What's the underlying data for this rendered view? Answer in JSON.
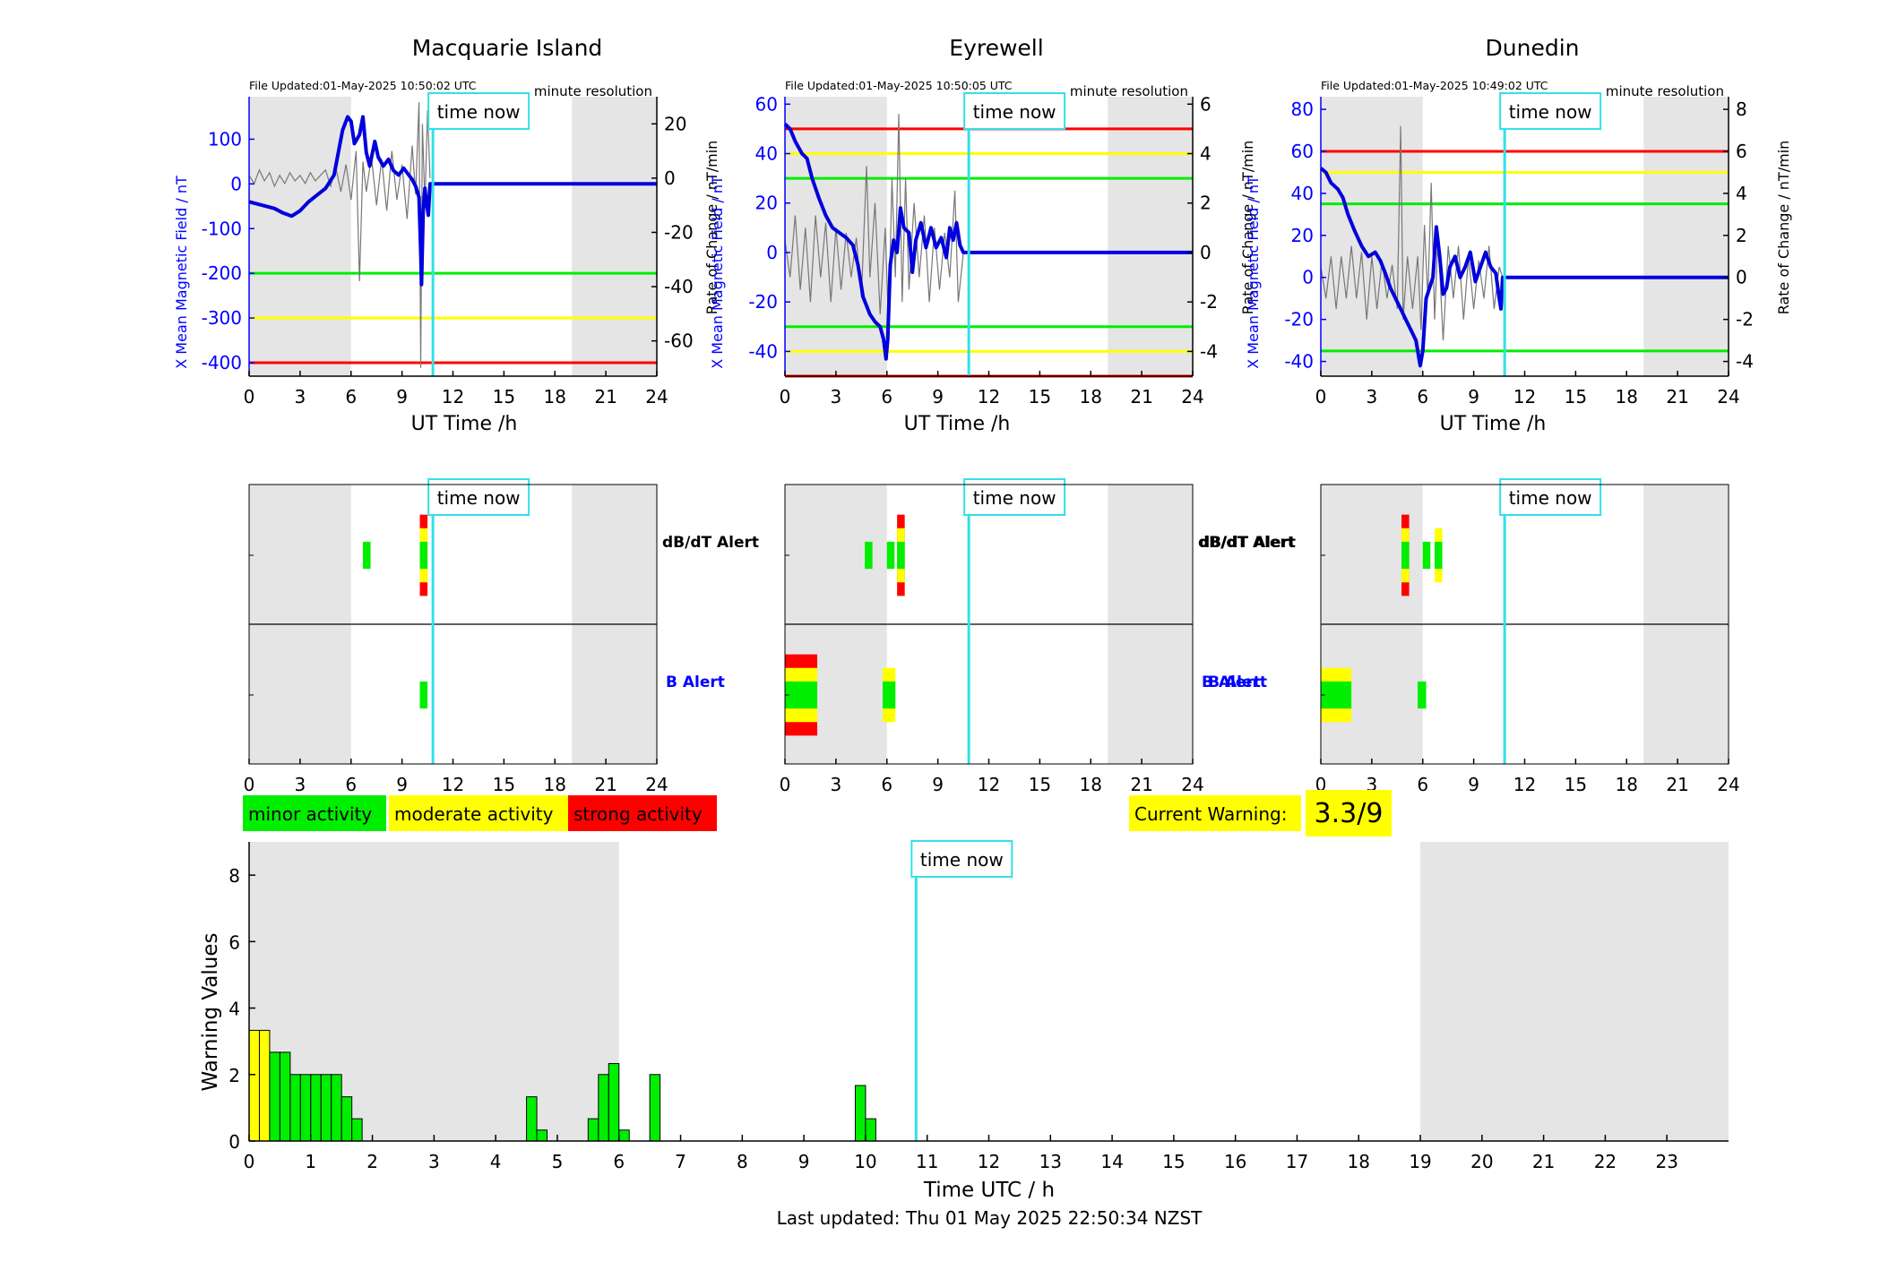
{
  "stations": [
    {
      "name": "Macquarie Island",
      "file_updated": "File Updated:01-May-2025 10:50:02 UTC",
      "resolution": "minute resolution",
      "time_now_label": "time now",
      "ylabel_left": "X Mean Magnetic Field / nT",
      "ylabel_right": "Rate of Change / nT/min",
      "xlabel": "UT Time /h",
      "left_ylim": [
        -430,
        195
      ],
      "left_yticks": [
        -400,
        -300,
        -200,
        -100,
        0,
        100
      ],
      "right_ylim": [
        -73,
        30
      ],
      "right_yticks": [
        -60,
        -40,
        -20,
        0,
        20
      ],
      "thresholds": [
        {
          "value": -200,
          "color": "#00ee00"
        },
        {
          "value": -300,
          "color": "#ffff00"
        },
        {
          "value": -400,
          "color": "#ff0000"
        }
      ],
      "field_series": [
        [
          0,
          -40
        ],
        [
          0.5,
          -45
        ],
        [
          1,
          -50
        ],
        [
          1.5,
          -55
        ],
        [
          2,
          -65
        ],
        [
          2.5,
          -72
        ],
        [
          3,
          -60
        ],
        [
          3.5,
          -40
        ],
        [
          4,
          -25
        ],
        [
          4.5,
          -10
        ],
        [
          5,
          20
        ],
        [
          5.3,
          80
        ],
        [
          5.5,
          120
        ],
        [
          5.8,
          150
        ],
        [
          6,
          140
        ],
        [
          6.2,
          90
        ],
        [
          6.5,
          110
        ],
        [
          6.7,
          150
        ],
        [
          6.9,
          70
        ],
        [
          7.1,
          40
        ],
        [
          7.4,
          95
        ],
        [
          7.6,
          60
        ],
        [
          7.9,
          40
        ],
        [
          8.2,
          55
        ],
        [
          8.5,
          30
        ],
        [
          8.8,
          20
        ],
        [
          9.1,
          35
        ],
        [
          9.3,
          25
        ],
        [
          9.6,
          10
        ],
        [
          9.8,
          -5
        ],
        [
          10,
          -30
        ],
        [
          10.1,
          -150
        ],
        [
          10.15,
          -225
        ],
        [
          10.25,
          -60
        ],
        [
          10.35,
          -10
        ],
        [
          10.45,
          -45
        ],
        [
          10.55,
          -70
        ],
        [
          10.65,
          0
        ],
        [
          10.8,
          0
        ],
        [
          11,
          0
        ],
        [
          24,
          0
        ]
      ],
      "rate_series": [
        [
          0,
          1
        ],
        [
          0.3,
          -2
        ],
        [
          0.6,
          3
        ],
        [
          0.9,
          -1
        ],
        [
          1.2,
          2
        ],
        [
          1.5,
          -3
        ],
        [
          1.8,
          1
        ],
        [
          2.1,
          -2
        ],
        [
          2.4,
          2
        ],
        [
          2.7,
          -1
        ],
        [
          3,
          1
        ],
        [
          3.3,
          -2
        ],
        [
          3.6,
          2
        ],
        [
          3.9,
          -1
        ],
        [
          4.2,
          1
        ],
        [
          4.5,
          3
        ],
        [
          4.8,
          -3
        ],
        [
          5.1,
          4
        ],
        [
          5.4,
          -5
        ],
        [
          5.7,
          5
        ],
        [
          6,
          -8
        ],
        [
          6.3,
          10
        ],
        [
          6.5,
          -38
        ],
        [
          6.7,
          6
        ],
        [
          6.9,
          -5
        ],
        [
          7.2,
          8
        ],
        [
          7.5,
          -10
        ],
        [
          7.8,
          7
        ],
        [
          8.1,
          -12
        ],
        [
          8.4,
          10
        ],
        [
          8.7,
          -8
        ],
        [
          9,
          5
        ],
        [
          9.3,
          -15
        ],
        [
          9.6,
          12
        ],
        [
          9.8,
          -6
        ],
        [
          10,
          28
        ],
        [
          10.1,
          -70
        ],
        [
          10.2,
          20
        ],
        [
          10.35,
          -10
        ],
        [
          10.5,
          25
        ],
        [
          10.65,
          0
        ]
      ],
      "alerts": {
        "dbdt": [
          {
            "t": 6.7,
            "level": 1
          },
          {
            "t": 10.05,
            "level": 3
          }
        ],
        "b": [
          {
            "t": 10.05,
            "level": 1
          }
        ]
      }
    },
    {
      "name": "Eyrewell",
      "file_updated": "File Updated:01-May-2025 10:50:05 UTC",
      "resolution": "minute resolution",
      "time_now_label": "time now",
      "ylabel_left": "X Mean Magnetic Field / nT",
      "ylabel_right": "Rate of Change / nT/min",
      "xlabel": "UT Time /h",
      "left_ylim": [
        -50,
        63
      ],
      "left_yticks": [
        -40,
        -20,
        0,
        20,
        40,
        60
      ],
      "right_ylim": [
        -5,
        6.3
      ],
      "right_yticks": [
        -4,
        -2,
        0,
        2,
        4,
        6
      ],
      "thresholds": [
        {
          "value": 50,
          "color": "#ff0000"
        },
        {
          "value": 40,
          "color": "#ffff00"
        },
        {
          "value": 30,
          "color": "#00ee00"
        },
        {
          "value": -30,
          "color": "#00ee00"
        },
        {
          "value": -40,
          "color": "#ffff00"
        },
        {
          "value": -50,
          "color": "#ff0000"
        }
      ],
      "field_series": [
        [
          0,
          52
        ],
        [
          0.3,
          50
        ],
        [
          0.6,
          45
        ],
        [
          1,
          40
        ],
        [
          1.3,
          38
        ],
        [
          1.6,
          30
        ],
        [
          2,
          22
        ],
        [
          2.4,
          15
        ],
        [
          2.8,
          10
        ],
        [
          3.2,
          8
        ],
        [
          3.6,
          6
        ],
        [
          4,
          3
        ],
        [
          4.3,
          -5
        ],
        [
          4.6,
          -18
        ],
        [
          5,
          -25
        ],
        [
          5.3,
          -28
        ],
        [
          5.6,
          -30
        ],
        [
          5.8,
          -35
        ],
        [
          5.95,
          -43
        ],
        [
          6.05,
          -35
        ],
        [
          6.2,
          -5
        ],
        [
          6.4,
          5
        ],
        [
          6.6,
          0
        ],
        [
          6.8,
          18
        ],
        [
          7,
          10
        ],
        [
          7.3,
          8
        ],
        [
          7.5,
          -8
        ],
        [
          7.7,
          5
        ],
        [
          8,
          12
        ],
        [
          8.3,
          2
        ],
        [
          8.6,
          10
        ],
        [
          8.9,
          2
        ],
        [
          9.2,
          6
        ],
        [
          9.5,
          -2
        ],
        [
          9.7,
          10
        ],
        [
          9.9,
          5
        ],
        [
          10.1,
          12
        ],
        [
          10.3,
          3
        ],
        [
          10.5,
          0
        ],
        [
          11,
          0
        ],
        [
          24,
          0
        ]
      ],
      "rate_series": [
        [
          0,
          0.5
        ],
        [
          0.3,
          -1
        ],
        [
          0.6,
          1.5
        ],
        [
          0.9,
          -1.5
        ],
        [
          1.2,
          1
        ],
        [
          1.5,
          -2
        ],
        [
          1.8,
          1.5
        ],
        [
          2.1,
          -1
        ],
        [
          2.4,
          1.2
        ],
        [
          2.7,
          -2
        ],
        [
          3,
          1
        ],
        [
          3.3,
          -1.5
        ],
        [
          3.6,
          0.8
        ],
        [
          3.9,
          -1
        ],
        [
          4.2,
          0.6
        ],
        [
          4.5,
          -1.8
        ],
        [
          4.8,
          3.5
        ],
        [
          5,
          -1
        ],
        [
          5.3,
          2
        ],
        [
          5.6,
          -2.5
        ],
        [
          5.9,
          1
        ],
        [
          6.1,
          -3
        ],
        [
          6.3,
          3
        ],
        [
          6.5,
          -1
        ],
        [
          6.7,
          5.6
        ],
        [
          6.9,
          -2
        ],
        [
          7.1,
          3
        ],
        [
          7.3,
          -1.5
        ],
        [
          7.6,
          2
        ],
        [
          7.9,
          -1
        ],
        [
          8.2,
          1.5
        ],
        [
          8.5,
          -2
        ],
        [
          8.8,
          1
        ],
        [
          9.1,
          -1.5
        ],
        [
          9.4,
          0.8
        ],
        [
          9.7,
          -1
        ],
        [
          10,
          2.5
        ],
        [
          10.2,
          -2
        ],
        [
          10.5,
          0
        ]
      ],
      "alerts": {
        "dbdt": [
          {
            "t": 4.7,
            "level": 1
          },
          {
            "t": 6.0,
            "level": 1
          },
          {
            "t": 6.6,
            "level": 3
          }
        ],
        "b": [
          {
            "t": 0.0,
            "level": 3,
            "width": 1.9
          },
          {
            "t": 5.75,
            "level": 2,
            "width": 0.75
          }
        ]
      }
    },
    {
      "name": "Dunedin",
      "file_updated": "File Updated:01-May-2025 10:49:02 UTC",
      "resolution": "minute resolution",
      "time_now_label": "time now",
      "ylabel_left": "X Mean Magnetic Field / nT",
      "ylabel_right": "Rate of Change / nT/min",
      "xlabel": "UT Time /h",
      "left_ylim": [
        -47,
        86
      ],
      "left_yticks": [
        -40,
        -20,
        0,
        20,
        40,
        60,
        80
      ],
      "right_ylim": [
        -4.7,
        8.6
      ],
      "right_yticks": [
        -4,
        -2,
        0,
        2,
        4,
        6,
        8
      ],
      "thresholds": [
        {
          "value": 60,
          "color": "#ff0000"
        },
        {
          "value": 50,
          "color": "#ffff00"
        },
        {
          "value": 35,
          "color": "#00ee00"
        },
        {
          "value": -35,
          "color": "#00ee00"
        }
      ],
      "field_series": [
        [
          0,
          52
        ],
        [
          0.3,
          50
        ],
        [
          0.6,
          45
        ],
        [
          1,
          42
        ],
        [
          1.3,
          38
        ],
        [
          1.6,
          30
        ],
        [
          2,
          22
        ],
        [
          2.4,
          15
        ],
        [
          2.8,
          10
        ],
        [
          3.2,
          12
        ],
        [
          3.5,
          8
        ],
        [
          3.8,
          2
        ],
        [
          4.1,
          -5
        ],
        [
          4.4,
          -10
        ],
        [
          4.7,
          -15
        ],
        [
          5,
          -20
        ],
        [
          5.3,
          -25
        ],
        [
          5.6,
          -30
        ],
        [
          5.85,
          -42
        ],
        [
          6,
          -35
        ],
        [
          6.2,
          -10
        ],
        [
          6.4,
          -5
        ],
        [
          6.6,
          0
        ],
        [
          6.8,
          24
        ],
        [
          7,
          10
        ],
        [
          7.2,
          -8
        ],
        [
          7.4,
          -5
        ],
        [
          7.6,
          5
        ],
        [
          7.9,
          10
        ],
        [
          8.2,
          0
        ],
        [
          8.5,
          5
        ],
        [
          8.8,
          12
        ],
        [
          9.1,
          -2
        ],
        [
          9.4,
          5
        ],
        [
          9.7,
          12
        ],
        [
          10,
          5
        ],
        [
          10.3,
          2
        ],
        [
          10.5,
          -10
        ],
        [
          10.6,
          -15
        ],
        [
          10.7,
          0
        ],
        [
          11,
          0
        ],
        [
          24,
          0
        ]
      ],
      "rate_series": [
        [
          0,
          0.5
        ],
        [
          0.3,
          -1
        ],
        [
          0.6,
          1
        ],
        [
          0.9,
          -1.5
        ],
        [
          1.2,
          1
        ],
        [
          1.5,
          -1
        ],
        [
          1.8,
          1.5
        ],
        [
          2.1,
          -1
        ],
        [
          2.4,
          1.2
        ],
        [
          2.7,
          -2
        ],
        [
          3,
          1
        ],
        [
          3.3,
          -1.5
        ],
        [
          3.6,
          0.8
        ],
        [
          3.9,
          -1
        ],
        [
          4.2,
          0.6
        ],
        [
          4.5,
          -1.5
        ],
        [
          4.7,
          7.2
        ],
        [
          4.85,
          -2
        ],
        [
          5.1,
          1
        ],
        [
          5.4,
          -1.5
        ],
        [
          5.7,
          1
        ],
        [
          5.9,
          -2.5
        ],
        [
          6.1,
          2.5
        ],
        [
          6.3,
          -1
        ],
        [
          6.5,
          4.5
        ],
        [
          6.7,
          -2
        ],
        [
          6.9,
          2
        ],
        [
          7.2,
          -3
        ],
        [
          7.5,
          1.5
        ],
        [
          7.8,
          -1
        ],
        [
          8.1,
          1.5
        ],
        [
          8.4,
          -2
        ],
        [
          8.7,
          1
        ],
        [
          9,
          -1.5
        ],
        [
          9.3,
          0.8
        ],
        [
          9.6,
          -1
        ],
        [
          9.9,
          1.5
        ],
        [
          10.2,
          -1.5
        ],
        [
          10.5,
          0.5
        ],
        [
          10.7,
          0
        ]
      ],
      "alerts": {
        "dbdt": [
          {
            "t": 4.75,
            "level": 3
          },
          {
            "t": 6.0,
            "level": 1
          },
          {
            "t": 6.7,
            "level": 2
          }
        ],
        "b": [
          {
            "t": 0.0,
            "level": 2,
            "width": 1.8
          },
          {
            "t": 5.7,
            "level": 1,
            "width": 0.5
          }
        ]
      }
    }
  ],
  "alert_row_labels": {
    "dbdt": "dB/dT Alert",
    "b": "B Alert"
  },
  "time_now_hours": 10.82,
  "night_shading": [
    [
      0,
      6
    ],
    [
      19,
      24
    ]
  ],
  "time_ticks": [
    0,
    3,
    6,
    9,
    12,
    15,
    18,
    21,
    24
  ],
  "legend": {
    "minor": "minor activity",
    "moderate": "moderate activity",
    "strong": "strong activity"
  },
  "current_warning": {
    "label": "Current Warning:",
    "value": "3.3/9"
  },
  "colors": {
    "minor": "#00ee00",
    "moderate": "#ffff00",
    "strong": "#ff0000",
    "field_line": "#0000dd",
    "rate_line": "#777777",
    "time_now": "#33e0e8",
    "night": "#e5e5e5",
    "axis_blue": "#0000ff"
  },
  "chart_data": {
    "type": "bar",
    "xlabel": "Time UTC / h",
    "ylabel": "Warning Values",
    "xlim": [
      0,
      24
    ],
    "ylim": [
      0,
      9
    ],
    "xticks": [
      0,
      1,
      2,
      3,
      4,
      5,
      6,
      7,
      8,
      9,
      10,
      11,
      12,
      13,
      14,
      15,
      16,
      17,
      18,
      19,
      20,
      21,
      22,
      23
    ],
    "yticks": [
      0,
      2,
      4,
      6,
      8
    ],
    "bar_width_h": 0.1667,
    "time_now_label": "time now",
    "night_shading": [
      [
        0,
        6
      ],
      [
        19,
        24
      ]
    ],
    "bars": [
      {
        "t": 0.0,
        "v": 3.33,
        "level": "moderate"
      },
      {
        "t": 0.1667,
        "v": 3.33,
        "level": "moderate"
      },
      {
        "t": 0.3333,
        "v": 2.67,
        "level": "minor"
      },
      {
        "t": 0.5,
        "v": 2.67,
        "level": "minor"
      },
      {
        "t": 0.6667,
        "v": 2.0,
        "level": "minor"
      },
      {
        "t": 0.8333,
        "v": 2.0,
        "level": "minor"
      },
      {
        "t": 1.0,
        "v": 2.0,
        "level": "minor"
      },
      {
        "t": 1.1667,
        "v": 2.0,
        "level": "minor"
      },
      {
        "t": 1.3333,
        "v": 2.0,
        "level": "minor"
      },
      {
        "t": 1.5,
        "v": 1.33,
        "level": "minor"
      },
      {
        "t": 1.6667,
        "v": 0.67,
        "level": "minor"
      },
      {
        "t": 4.5,
        "v": 1.33,
        "level": "minor"
      },
      {
        "t": 4.6667,
        "v": 0.33,
        "level": "minor"
      },
      {
        "t": 5.5,
        "v": 0.67,
        "level": "minor"
      },
      {
        "t": 5.6667,
        "v": 2.0,
        "level": "minor"
      },
      {
        "t": 5.8333,
        "v": 2.33,
        "level": "minor"
      },
      {
        "t": 6.0,
        "v": 0.33,
        "level": "minor"
      },
      {
        "t": 6.5,
        "v": 2.0,
        "level": "minor"
      },
      {
        "t": 9.8333,
        "v": 1.67,
        "level": "minor"
      },
      {
        "t": 10.0,
        "v": 0.67,
        "level": "minor"
      }
    ]
  },
  "footer": "Last updated: Thu 01 May 2025 22:50:34 NZST"
}
